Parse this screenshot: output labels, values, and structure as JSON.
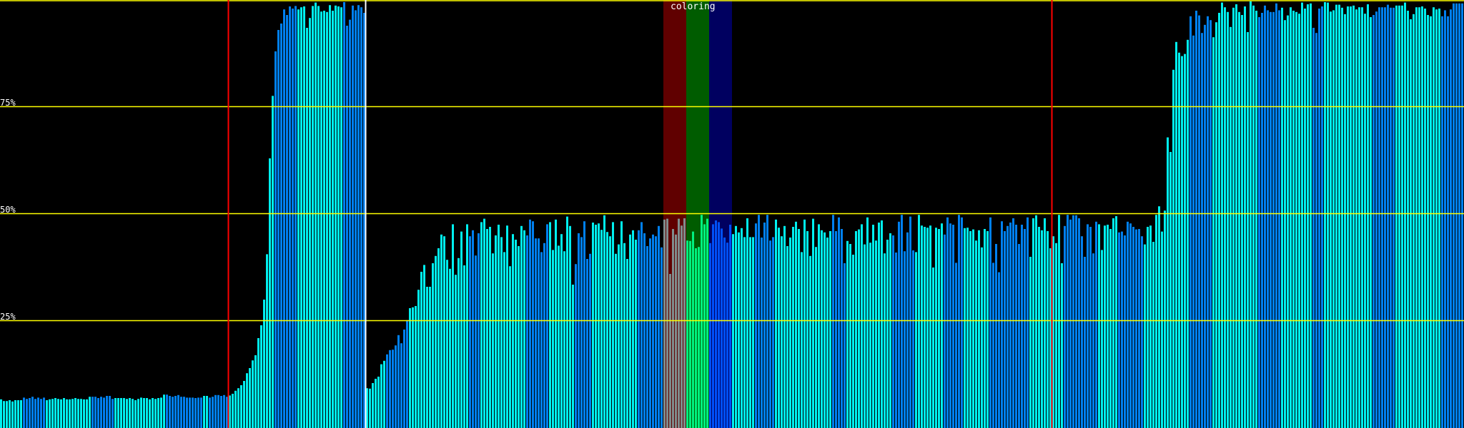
{
  "chart_data": {
    "type": "bar",
    "title": "",
    "xlabel": "",
    "ylabel": "",
    "ylim": [
      0,
      100
    ],
    "y_unit": "%",
    "grid": true,
    "gridlines": [
      {
        "value": 100,
        "label": ""
      },
      {
        "value": 75,
        "label": "75%"
      },
      {
        "value": 50,
        "label": "50%"
      },
      {
        "value": 25,
        "label": "25%"
      }
    ],
    "colors": {
      "background": "#000000",
      "gridline": "#ffff00",
      "bar_cyan": "#00f0f0",
      "bar_blue": "#0080f0",
      "band_bar_red": "#7f8c8c",
      "band_bar_green": "#00f080",
      "band_bar_blue": "#0050f8",
      "band_red": "#600000",
      "band_green": "#005c00",
      "band_blue": "#000060"
    },
    "markers": [
      {
        "bar": 80,
        "color": "#ff0000"
      },
      {
        "bar": 128,
        "color": "#ffffff"
      },
      {
        "bar": 368,
        "color": "#ff0000"
      }
    ],
    "bands": {
      "label": "coloring",
      "items": [
        {
          "from": 232,
          "to": 239,
          "band": "band_red",
          "bar": "band_bar_red"
        },
        {
          "from": 240,
          "to": 247,
          "band": "band_green",
          "bar": "band_bar_green"
        },
        {
          "from": 248,
          "to": 255,
          "band": "band_blue",
          "bar": "band_bar_blue"
        }
      ]
    },
    "color_runs": [
      [
        0,
        7,
        "bar_cyan"
      ],
      [
        8,
        15,
        "bar_blue"
      ],
      [
        16,
        31,
        "bar_cyan"
      ],
      [
        32,
        39,
        "bar_blue"
      ],
      [
        40,
        57,
        "bar_cyan"
      ],
      [
        58,
        70,
        "bar_blue"
      ],
      [
        71,
        72,
        "bar_cyan"
      ],
      [
        73,
        79,
        "bar_blue"
      ],
      [
        80,
        95,
        "bar_cyan"
      ],
      [
        96,
        103,
        "bar_blue"
      ],
      [
        104,
        119,
        "bar_cyan"
      ],
      [
        120,
        127,
        "bar_blue"
      ],
      [
        128,
        134,
        "bar_cyan"
      ],
      [
        135,
        142,
        "bar_blue"
      ],
      [
        143,
        163,
        "bar_cyan"
      ],
      [
        164,
        167,
        "bar_blue"
      ],
      [
        168,
        183,
        "bar_cyan"
      ],
      [
        184,
        191,
        "bar_blue"
      ],
      [
        192,
        200,
        "bar_cyan"
      ],
      [
        201,
        206,
        "bar_blue"
      ],
      [
        207,
        222,
        "bar_cyan"
      ],
      [
        223,
        231,
        "bar_blue"
      ],
      [
        256,
        263,
        "bar_cyan"
      ],
      [
        264,
        270,
        "bar_blue"
      ],
      [
        271,
        290,
        "bar_cyan"
      ],
      [
        291,
        295,
        "bar_blue"
      ],
      [
        296,
        311,
        "bar_cyan"
      ],
      [
        312,
        319,
        "bar_blue"
      ],
      [
        320,
        329,
        "bar_cyan"
      ],
      [
        330,
        336,
        "bar_blue"
      ],
      [
        337,
        345,
        "bar_cyan"
      ],
      [
        346,
        359,
        "bar_blue"
      ],
      [
        360,
        371,
        "bar_cyan"
      ],
      [
        372,
        383,
        "bar_blue"
      ],
      [
        384,
        390,
        "bar_cyan"
      ],
      [
        391,
        399,
        "bar_blue"
      ],
      [
        400,
        415,
        "bar_cyan"
      ],
      [
        416,
        423,
        "bar_blue"
      ],
      [
        424,
        439,
        "bar_cyan"
      ],
      [
        440,
        447,
        "bar_blue"
      ],
      [
        448,
        458,
        "bar_cyan"
      ],
      [
        459,
        462,
        "bar_blue"
      ],
      [
        463,
        479,
        "bar_cyan"
      ],
      [
        480,
        487,
        "bar_blue"
      ],
      [
        488,
        503,
        "bar_cyan"
      ],
      [
        504,
        511,
        "bar_blue"
      ]
    ],
    "values": [
      6.7,
      6.3,
      6.3,
      6.5,
      6.2,
      6.5,
      6.5,
      6.5,
      7.1,
      6.8,
      7.0,
      7.3,
      6.8,
      7.1,
      6.8,
      7.1,
      6.5,
      6.7,
      6.8,
      7.0,
      6.8,
      6.7,
      7.0,
      6.7,
      6.7,
      6.8,
      7.0,
      6.8,
      6.8,
      6.7,
      6.7,
      7.3,
      7.3,
      7.3,
      7.0,
      7.3,
      7.1,
      7.5,
      7.5,
      6.8,
      7.0,
      7.0,
      7.0,
      7.0,
      6.8,
      7.0,
      6.8,
      6.5,
      6.8,
      7.1,
      7.0,
      7.0,
      6.7,
      7.0,
      6.8,
      7.0,
      7.1,
      7.8,
      7.8,
      7.5,
      7.3,
      7.5,
      7.7,
      7.3,
      7.3,
      7.1,
      7.1,
      7.1,
      7.0,
      7.1,
      7.1,
      7.5,
      7.5,
      7.1,
      7.3,
      7.7,
      7.7,
      7.5,
      7.7,
      7.3,
      7.6,
      8,
      8.7,
      9.3,
      10,
      11,
      12.8,
      14,
      15.8,
      17,
      21,
      24,
      30,
      40.6,
      63,
      77.6,
      88,
      93,
      94.5,
      97.8,
      96.5,
      98.5,
      98,
      98.6,
      97.8,
      98.3,
      98.5,
      93.5,
      95.8,
      98.6,
      99.4,
      98.6,
      97.3,
      97.5,
      97.2,
      98.8,
      97.5,
      98.7,
      98.5,
      98.3,
      99.5,
      94,
      95.4,
      98.7,
      97.6,
      98.8,
      98.3,
      97,
      9.3,
      9.2,
      10.5,
      11.5,
      12,
      14.9,
      15.7,
      17.2,
      18.2,
      18.3,
      19.3,
      21.7,
      19.8,
      23,
      25.2,
      28,
      28.2,
      28.5,
      32.3,
      36.5,
      38.1,
      33,
      33,
      38.5,
      40.2,
      42,
      45.2,
      44.8,
      39.3,
      37.2,
      47.6,
      35.8,
      39.7,
      45.9,
      38.0,
      47.6,
      44.8,
      46.2,
      40.3,
      45.5,
      48.1,
      48.9,
      46.5,
      47.0,
      40.8,
      45.0,
      47.5,
      44.6,
      41.1,
      47.3,
      37.8,
      45.3,
      44.0,
      42.5,
      47.2,
      46.2,
      45.0,
      48.7,
      48.3,
      44.3,
      44.3,
      41.1,
      43.2,
      47.6,
      48.1,
      41.6,
      48.7,
      42.6,
      45.3,
      41.3,
      49.4,
      47.2,
      33.5,
      38.3,
      45.5,
      44.6,
      48.3,
      39.5,
      40.7,
      48.0,
      47.5,
      47.8,
      46.3,
      49.7,
      45.8,
      44.8,
      48.1,
      40.7,
      42.9,
      48.3,
      43.2,
      39.5,
      45.2,
      46.2,
      44.0,
      46.2,
      48.1,
      45.5,
      42.5,
      44.3,
      45.2,
      44.8,
      47.2,
      42.2,
      48.7,
      48.9,
      36.0,
      46.5,
      45.2,
      48.9,
      47.3,
      49.0,
      43.8,
      43.7,
      45.9,
      42.0,
      42.3,
      49.8,
      47.6,
      48.9,
      43.2,
      47.6,
      48.5,
      48.1,
      46.6,
      44.5,
      43.3,
      47.5,
      45.3,
      47.2,
      45.7,
      46.7,
      44.6,
      49,
      44.6,
      44.6,
      47.8,
      49.8,
      44.5,
      48,
      49.8,
      43.8,
      44.6,
      48.7,
      46.8,
      44.8,
      47.2,
      42.5,
      44.5,
      47,
      48.2,
      46.5,
      41.1,
      48.7,
      46,
      40.2,
      48.9,
      42.3,
      47.6,
      46.2,
      45.7,
      44.5,
      46,
      49.8,
      46,
      49.2,
      46.5,
      38.5,
      43.7,
      43,
      40.5,
      46,
      46.4,
      47.6,
      42.9,
      49.2,
      43.3,
      47.5,
      43.8,
      48,
      48.5,
      40.8,
      44,
      45.5,
      45,
      41,
      48.2,
      49.8,
      41.3,
      45.7,
      49.4,
      41.5,
      41.1,
      49.8,
      47.3,
      47,
      46.8,
      47.3,
      37.5,
      46.8,
      46.5,
      47.8,
      45.2,
      49.2,
      47.8,
      47.5,
      38.6,
      49.8,
      49.2,
      46.7,
      46.8,
      46,
      46.4,
      43.8,
      46.2,
      42.2,
      46.5,
      46,
      49.2,
      38.6,
      43,
      36.4,
      48.3,
      46,
      47.2,
      48,
      49,
      47.5,
      43,
      47.5,
      46.5,
      49.2,
      40,
      49,
      49.7,
      47,
      46.2,
      49,
      46,
      42,
      44.8,
      43.2,
      49.8,
      38.5,
      47.2,
      49.8,
      48.7,
      49.7,
      49.7,
      49,
      44.8,
      40,
      47.6,
      47,
      40.8,
      48.2,
      47.6,
      41.6,
      47.3,
      47.5,
      46.5,
      49,
      49.5,
      45.7,
      45.9,
      45,
      48.2,
      47.8,
      47,
      46.4,
      46.5,
      44.8,
      42.9,
      47,
      47.3,
      43.5,
      49.8,
      51.8,
      45.9,
      50.8,
      67.9,
      64.5,
      83.7,
      90.2,
      87.7,
      86.9,
      87.4,
      90.7,
      96.2,
      91.7,
      97.5,
      96.4,
      92.3,
      94.2,
      96.2,
      95.3,
      91.3,
      94.8,
      97,
      99.4,
      98.3,
      97.2,
      93.7,
      98.2,
      99,
      97.2,
      96.5,
      98.5,
      92.5,
      99.7,
      98.7,
      97.5,
      96,
      97,
      98.7,
      97.6,
      97.2,
      97.2,
      99.2,
      97.6,
      98.2,
      95.3,
      96.4,
      98.3,
      97.5,
      97.2,
      96.8,
      99.4,
      98,
      99,
      99.2,
      93.5,
      92.3,
      98,
      98.5,
      99.5,
      99.4,
      97.3,
      97.6,
      98.9,
      98.9,
      98.2,
      96.7,
      98.5,
      98.5,
      98.7,
      97.8,
      98.3,
      98.3,
      96.8,
      99,
      96,
      96.5,
      97.3,
      98.3,
      98.3,
      98.3,
      98.9,
      98.2,
      98.2,
      98.7,
      98.7,
      98.7,
      99.4,
      97.5,
      95.5,
      96.7,
      98.3,
      98.3,
      98.5,
      98,
      96.5,
      96.2,
      98.3,
      97.8,
      98,
      96.2,
      97.6,
      96.2,
      97.8,
      99.2,
      99.2,
      99.2,
      99.2
    ]
  }
}
